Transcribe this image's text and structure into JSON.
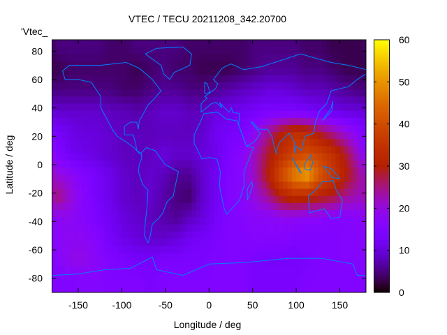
{
  "chart_data": {
    "type": "heatmap",
    "title": "VTEC / TECU 20211208_342.20700",
    "xlabel": "Longitude / deg",
    "ylabel": "Latitude / deg",
    "key_label": "'Vtec_",
    "xlim": [
      -180,
      180
    ],
    "ylim": [
      -90,
      88
    ],
    "xticks": [
      -150,
      -100,
      -50,
      0,
      50,
      100,
      150
    ],
    "xtick_labels": [
      "-150",
      "-100",
      "-50",
      "0",
      "50",
      "100",
      "150"
    ],
    "yticks": [
      80,
      60,
      40,
      20,
      0,
      -20,
      -40,
      -60,
      -80
    ],
    "ytick_labels": [
      "80",
      "60",
      "40",
      "20",
      "0",
      "-20",
      "-40",
      "-60",
      "-80"
    ],
    "colorbar": {
      "range": [
        0,
        60
      ],
      "ticks": [
        0,
        10,
        20,
        30,
        40,
        50,
        60
      ],
      "tick_labels": [
        "0",
        "10",
        "20",
        "30",
        "40",
        "50",
        "60"
      ],
      "palette": "black-blue-red-yellow"
    },
    "coastline_color": "#0080ff",
    "grid_lon_centers_start": -172.5,
    "grid_lon_step": 15,
    "grid_lat_centers": [
      82.5,
      67.5,
      52.5,
      37.5,
      22.5,
      7.5,
      -7.5,
      -22.5,
      -37.5,
      -52.5,
      -67.5,
      -82.5
    ],
    "values": [
      [
        5,
        5,
        5,
        5,
        4,
        4,
        5,
        5,
        5,
        5,
        4,
        4,
        4,
        4,
        4,
        5,
        5,
        5,
        5,
        4,
        4,
        3,
        3,
        3
      ],
      [
        3,
        4,
        4,
        4,
        4,
        4,
        3,
        4,
        5,
        4,
        4,
        3,
        3,
        3,
        4,
        5,
        6,
        6,
        6,
        5,
        5,
        4,
        3,
        3
      ],
      [
        5,
        5,
        5,
        5,
        5,
        4,
        4,
        5,
        6,
        6,
        5,
        5,
        6,
        7,
        8,
        9,
        10,
        10,
        9,
        8,
        8,
        7,
        6,
        5
      ],
      [
        9,
        9,
        9,
        9,
        8,
        8,
        7,
        8,
        9,
        9,
        8,
        8,
        10,
        11,
        12,
        13,
        14,
        14,
        14,
        13,
        12,
        11,
        10,
        10
      ],
      [
        13,
        11,
        10,
        10,
        9,
        8,
        8,
        8,
        8,
        8,
        8,
        9,
        12,
        13,
        14,
        18,
        24,
        30,
        34,
        33,
        28,
        24,
        20,
        16
      ],
      [
        15,
        12,
        11,
        10,
        9,
        8,
        8,
        8,
        10,
        9,
        9,
        10,
        11,
        14,
        17,
        22,
        28,
        34,
        38,
        40,
        38,
        34,
        28,
        20
      ],
      [
        20,
        18,
        15,
        13,
        11,
        9,
        8,
        9,
        8,
        6,
        6,
        9,
        12,
        15,
        17,
        22,
        30,
        40,
        48,
        52,
        42,
        36,
        30,
        24
      ],
      [
        25,
        20,
        16,
        13,
        11,
        9,
        8,
        9,
        7,
        5,
        4,
        9,
        12,
        15,
        17,
        20,
        24,
        30,
        33,
        32,
        30,
        28,
        24,
        22
      ],
      [
        18,
        18,
        16,
        14,
        12,
        10,
        9,
        8,
        7,
        6,
        8,
        10,
        13,
        15,
        16,
        17,
        17,
        18,
        18,
        17,
        17,
        16,
        16,
        17
      ],
      [
        17,
        18,
        18,
        16,
        13,
        11,
        10,
        9,
        9,
        10,
        12,
        13,
        14,
        15,
        15,
        16,
        16,
        16,
        15,
        15,
        15,
        15,
        16,
        16
      ],
      [
        17,
        19,
        19,
        17,
        15,
        14,
        13,
        13,
        14,
        14,
        14,
        14,
        15,
        15,
        15,
        14,
        13,
        13,
        13,
        14,
        15,
        15,
        16,
        16
      ],
      [
        15,
        15,
        16,
        16,
        15,
        15,
        15,
        14,
        15,
        15,
        15,
        15,
        15,
        15,
        15,
        14,
        14,
        14,
        14,
        15,
        15,
        15,
        15,
        15
      ]
    ]
  }
}
